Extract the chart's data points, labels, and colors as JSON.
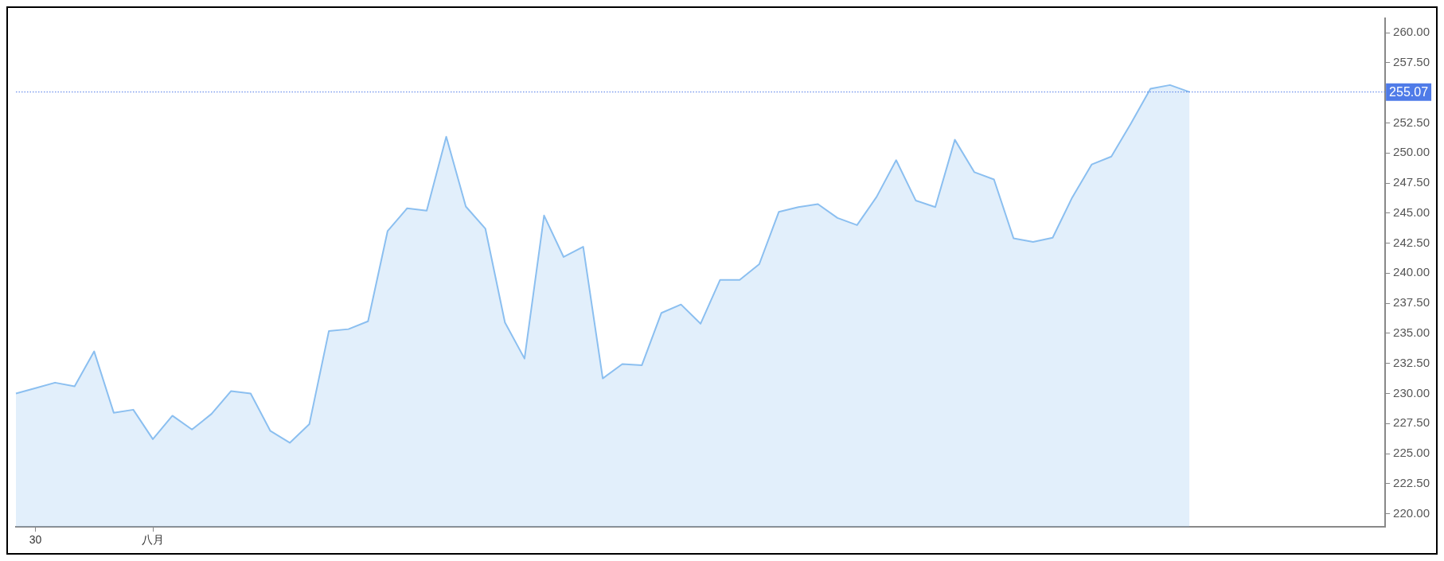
{
  "chart_data": {
    "type": "area",
    "categories": [
      null,
      "30",
      null,
      null,
      null,
      null,
      null,
      "八月",
      null,
      null,
      null,
      null,
      null,
      null,
      null,
      null,
      null,
      null,
      null,
      null,
      null,
      null,
      null,
      null,
      null,
      null,
      null,
      null,
      null,
      null,
      null,
      null,
      null,
      null,
      null,
      null,
      null,
      null,
      null,
      null,
      null,
      null,
      null,
      null,
      null,
      null,
      null,
      null,
      null,
      null,
      null,
      null,
      null,
      null,
      null,
      null,
      null,
      null,
      null,
      null,
      null,
      null,
      null,
      null,
      null,
      null,
      null,
      null,
      null,
      null,
      null
    ],
    "series": [
      {
        "color": "#8bbff0",
        "values": [
          230.0,
          230.45,
          230.9,
          230.6,
          233.5,
          228.4,
          228.65,
          226.2,
          228.15,
          227.0,
          228.3,
          230.2,
          230.0,
          226.9,
          225.9,
          227.45,
          235.2,
          235.35,
          236.0,
          243.5,
          245.4,
          245.2,
          251.35,
          245.55,
          243.7,
          235.9,
          232.9,
          244.8,
          241.35,
          242.2,
          231.25,
          232.45,
          232.35,
          236.7,
          237.4,
          235.8,
          239.45,
          239.45,
          240.75,
          245.1,
          245.5,
          245.75,
          244.6,
          244.0,
          246.35,
          249.4,
          246.05,
          245.5,
          251.1,
          248.4,
          247.8,
          242.9,
          242.6,
          242.95,
          246.3,
          249.05,
          249.7,
          252.45,
          255.35,
          255.65,
          255.07,
          null,
          null,
          null,
          null,
          null,
          null,
          null,
          null,
          null,
          null
        ]
      }
    ],
    "ylim": [
      218.9,
      261.2
    ],
    "yticks": [
      {
        "value": 220,
        "label": "220.00"
      },
      {
        "value": 222.5,
        "label": "222.50"
      },
      {
        "value": 225,
        "label": "225.00"
      },
      {
        "value": 227.5,
        "label": "227.50"
      },
      {
        "value": 230,
        "label": "230.00"
      },
      {
        "value": 232.5,
        "label": "232.50"
      },
      {
        "value": 235,
        "label": "235.00"
      },
      {
        "value": 237.5,
        "label": "237.50"
      },
      {
        "value": 240,
        "label": "240.00"
      },
      {
        "value": 242.5,
        "label": "242.50"
      },
      {
        "value": 245,
        "label": "245.00"
      },
      {
        "value": 247.5,
        "label": "247.50"
      },
      {
        "value": 250,
        "label": "250.00"
      },
      {
        "value": 252.5,
        "label": "252.50"
      },
      {
        "value": 257.5,
        "label": "257.50"
      },
      {
        "value": 260,
        "label": "260.00"
      }
    ],
    "ref_lines": [
      {
        "axis": "y",
        "value": 255.07,
        "label": "255.07",
        "color": "#4f7be8",
        "line_style": "dotted"
      }
    ],
    "grid": false,
    "legend": false
  }
}
